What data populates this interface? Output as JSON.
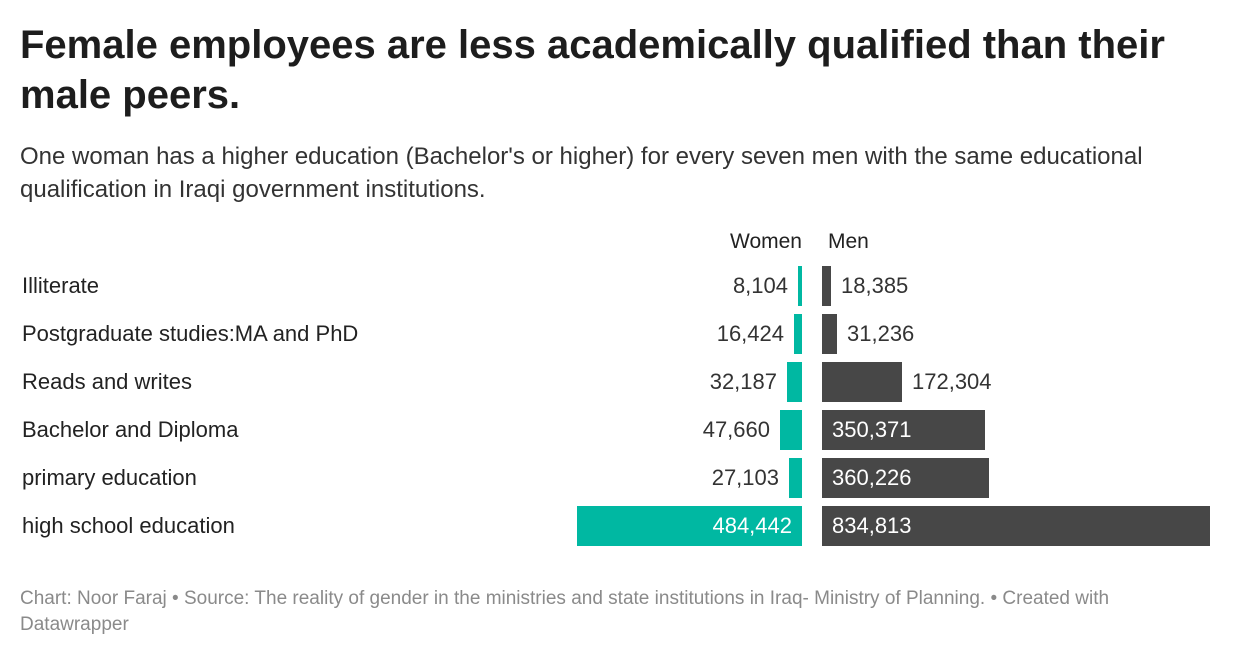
{
  "header": {
    "title": "Female employees are less academically qualified than their male peers.",
    "subtitle": "One woman has a higher education (Bachelor's or higher) for every seven men with the same educational qualification in Iraqi government institutions."
  },
  "chart_data": {
    "type": "bar",
    "orientation": "horizontal-split",
    "categories": [
      "Illiterate",
      "Postgraduate studies:MA and PhD",
      "Reads and writes",
      "Bachelor and Diploma",
      "primary education",
      "high school education"
    ],
    "series": [
      {
        "name": "Women",
        "color": "#00b8a2",
        "values": [
          8104,
          16424,
          32187,
          47660,
          27103,
          484442
        ],
        "labels": [
          "8,104",
          "16,424",
          "32,187",
          "47,660",
          "27,103",
          "484,442"
        ]
      },
      {
        "name": "Men",
        "color": "#474747",
        "values": [
          18385,
          31236,
          172304,
          350371,
          360226,
          834813
        ],
        "labels": [
          "18,385",
          "31,236",
          "172,304",
          "350,371",
          "360,226",
          "834,813"
        ]
      }
    ],
    "grid": false,
    "legend": "column headers top"
  },
  "footer": {
    "text": "Chart: Noor Faraj • Source: The reality of gender in the ministries and state institutions in Iraq- Ministry of Planning. • Created with Datawrapper"
  }
}
